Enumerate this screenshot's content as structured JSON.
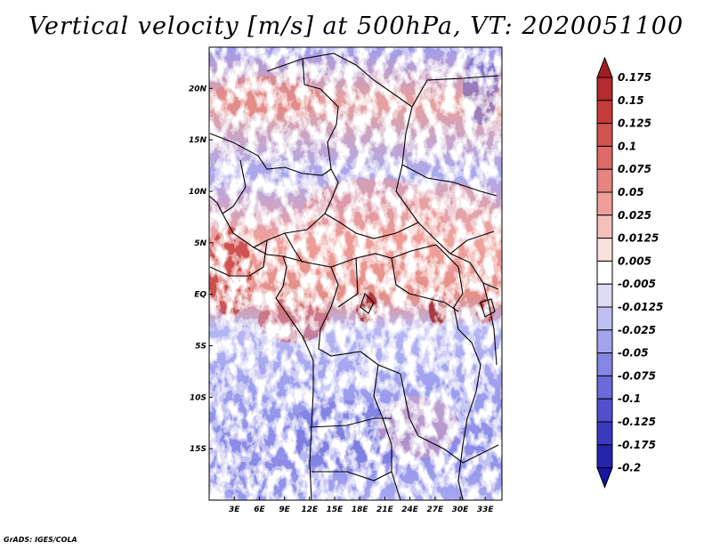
{
  "title": "Vertical velocity [m/s] at 500hPa, VT: 2020051100",
  "credit": "GrADS: IGES/COLA",
  "map": {
    "lon_range": [
      0,
      35
    ],
    "lat_range": [
      -20,
      24
    ],
    "lat_ticks": [
      {
        "label": "20N",
        "lat": 20
      },
      {
        "label": "15N",
        "lat": 15
      },
      {
        "label": "10N",
        "lat": 10
      },
      {
        "label": "5N",
        "lat": 5
      },
      {
        "label": "EQ",
        "lat": 0
      },
      {
        "label": "5S",
        "lat": -5
      },
      {
        "label": "10S",
        "lat": -10
      },
      {
        "label": "15S",
        "lat": -15
      }
    ],
    "lon_ticks": [
      {
        "label": "3E",
        "lon": 3
      },
      {
        "label": "6E",
        "lon": 6
      },
      {
        "label": "9E",
        "lon": 9
      },
      {
        "label": "12E",
        "lon": 12
      },
      {
        "label": "15E",
        "lon": 15
      },
      {
        "label": "18E",
        "lon": 18
      },
      {
        "label": "21E",
        "lon": 21
      },
      {
        "label": "24E",
        "lon": 24
      },
      {
        "label": "27E",
        "lon": 27
      },
      {
        "label": "30E",
        "lon": 30
      },
      {
        "label": "33E",
        "lon": 33
      }
    ]
  },
  "colorbar": {
    "labels": [
      "0.175",
      "0.15",
      "0.125",
      "0.1",
      "0.075",
      "0.05",
      "0.025",
      "0.0125",
      "0.005",
      "-0.005",
      "-0.0125",
      "-0.025",
      "-0.05",
      "-0.075",
      "-0.1",
      "-0.125",
      "-0.175",
      "-0.2"
    ],
    "colors": [
      "#a01e23",
      "#b52a2c",
      "#c53b3a",
      "#d25250",
      "#dc6b66",
      "#e6847f",
      "#ef9f9a",
      "#f5c0bc",
      "#fbe1de",
      "#ffffff",
      "#dcdcf6",
      "#bfbff2",
      "#a3a3ed",
      "#8585e4",
      "#6a6adb",
      "#5050cd",
      "#3a3abf",
      "#2424ad",
      "#1616a0"
    ]
  }
}
